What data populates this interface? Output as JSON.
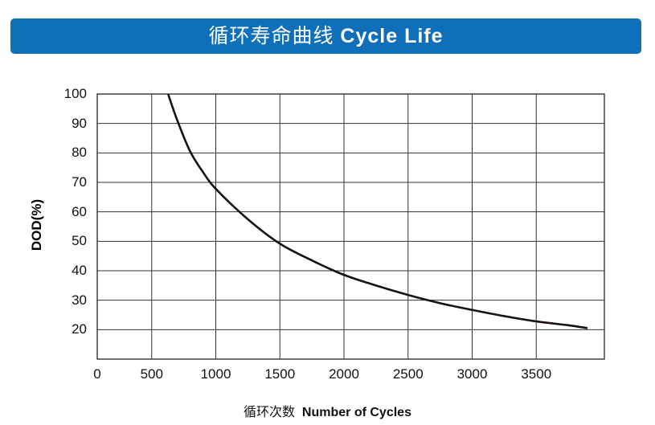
{
  "title": {
    "zh": "循环寿命曲线",
    "en": "Cycle Life"
  },
  "chart_data": {
    "type": "line",
    "title": "循环寿命曲线 Cycle Life",
    "xlabel_zh": "循环次数",
    "xlabel": "Number of Cycles",
    "ylabel": "DOD(%)",
    "xticks": [
      0,
      500,
      1000,
      1500,
      2000,
      2500,
      3000,
      3500
    ],
    "yticks": [
      20,
      30,
      40,
      50,
      60,
      70,
      80,
      90,
      100
    ],
    "xlim": [
      0,
      4000
    ],
    "ylim": [
      10,
      100
    ],
    "grid": true,
    "line_color": "#1a1211",
    "accent_color": "#0f6fb8",
    "series": [
      {
        "x": [
          628,
          700,
          800,
          900,
          1000,
          1250,
          1500,
          1750,
          2000,
          2250,
          2500,
          2750,
          3000,
          3250,
          3500,
          3750,
          3900
        ],
        "y": [
          100,
          91,
          80.5,
          73.5,
          67.8,
          57.5,
          49.2,
          43.5,
          38.6,
          35,
          31.8,
          29,
          26.7,
          24.6,
          22.8,
          21.5,
          20.5
        ]
      }
    ]
  }
}
